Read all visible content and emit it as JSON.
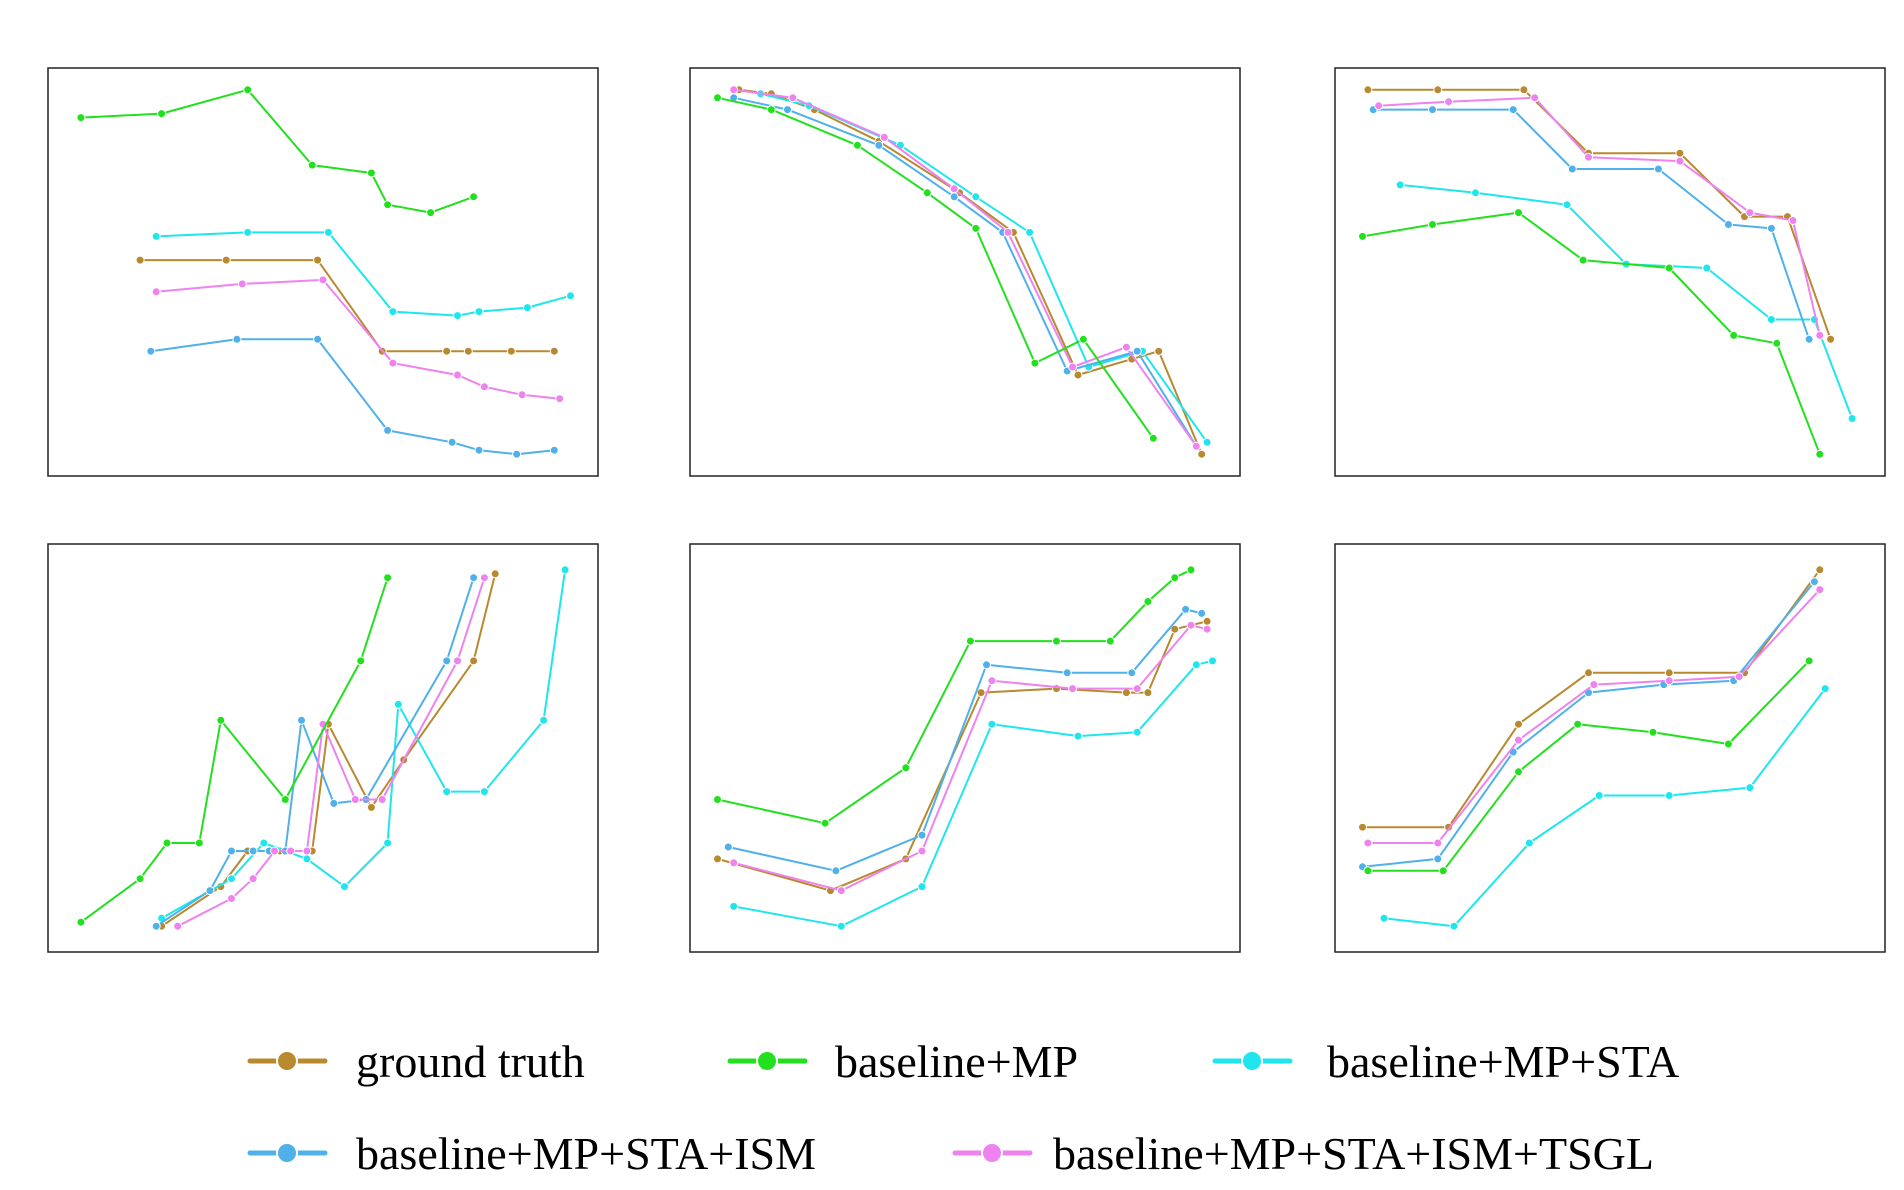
{
  "colors": {
    "ground truth": "#B8892E",
    "baseline+MP": "#22E01E",
    "baseline+MP+STA": "#1FE6EC",
    "baseline+MP+STA+ISM": "#4FB0EA",
    "baseline+MP+STA+ISM+TSGL": "#EE82EE"
  },
  "legend": {
    "items": [
      {
        "label": "ground truth",
        "color": "#B8892E"
      },
      {
        "label": "baseline+MP",
        "color": "#22E01E"
      },
      {
        "label": "baseline+MP+STA",
        "color": "#1FE6EC"
      },
      {
        "label": "baseline+MP+STA+ISM",
        "color": "#4FB0EA"
      },
      {
        "label": "baseline+MP+STA+ISM+TSGL",
        "color": "#EE82EE"
      }
    ]
  },
  "chart_data": [
    {
      "type": "line",
      "title": "",
      "xlabel": "",
      "ylabel": "",
      "grid": false,
      "xlim": [
        0,
        100
      ],
      "ylim": [
        0,
        100
      ],
      "series": [
        {
          "name": "ground truth",
          "x": [
            16,
            32,
            49,
            61,
            73,
            77,
            85,
            93
          ],
          "y": [
            53,
            53,
            53,
            30,
            30,
            30,
            30,
            30
          ]
        },
        {
          "name": "baseline+MP",
          "x": [
            5,
            20,
            36,
            48,
            59,
            62,
            70,
            78
          ],
          "y": [
            89,
            90,
            96,
            77,
            75,
            67,
            65,
            69
          ]
        },
        {
          "name": "baseline+MP+STA",
          "x": [
            19,
            36,
            51,
            63,
            75,
            79,
            88,
            96
          ],
          "y": [
            59,
            60,
            60,
            40,
            39,
            40,
            41,
            44
          ]
        },
        {
          "name": "baseline+MP+STA+ISM",
          "x": [
            18,
            34,
            49,
            62,
            74,
            79,
            86,
            93
          ],
          "y": [
            30,
            33,
            33,
            10,
            7,
            5,
            4,
            5
          ]
        },
        {
          "name": "baseline+MP+STA+ISM+TSGL",
          "x": [
            19,
            35,
            50,
            63,
            75,
            80,
            87,
            94
          ],
          "y": [
            45,
            47,
            48,
            27,
            24,
            21,
            19,
            18
          ]
        }
      ]
    },
    {
      "type": "line",
      "title": "",
      "xlabel": "",
      "ylabel": "",
      "grid": false,
      "xlim": [
        0,
        100
      ],
      "ylim": [
        0,
        100
      ],
      "series": [
        {
          "name": "ground truth",
          "x": [
            8,
            14,
            22,
            34,
            49,
            59,
            71,
            81,
            86,
            94
          ],
          "y": [
            96,
            95,
            91,
            83,
            70,
            60,
            24,
            28,
            30,
            4
          ]
        },
        {
          "name": "baseline+MP",
          "x": [
            4,
            14,
            30,
            43,
            52,
            63,
            72,
            85
          ],
          "y": [
            94,
            91,
            82,
            70,
            61,
            27,
            33,
            8
          ]
        },
        {
          "name": "baseline+MP+STA",
          "x": [
            12,
            21,
            38,
            52,
            62,
            73,
            83,
            95
          ],
          "y": [
            95,
            92,
            82,
            69,
            60,
            26,
            30,
            7
          ]
        },
        {
          "name": "baseline+MP+STA+ISM",
          "x": [
            7,
            17,
            34,
            48,
            57,
            69,
            82,
            93
          ],
          "y": [
            94,
            91,
            82,
            69,
            60,
            25,
            30,
            6
          ]
        },
        {
          "name": "baseline+MP+STA+ISM+TSGL",
          "x": [
            7,
            18,
            35,
            48,
            58,
            70,
            80,
            93
          ],
          "y": [
            96,
            94,
            84,
            71,
            60,
            26,
            31,
            6
          ]
        }
      ]
    },
    {
      "type": "line",
      "title": "",
      "xlabel": "",
      "ylabel": "",
      "grid": false,
      "xlim": [
        0,
        100
      ],
      "ylim": [
        0,
        100
      ],
      "series": [
        {
          "name": "ground truth",
          "x": [
            5,
            18,
            34,
            46,
            63,
            75,
            83,
            91
          ],
          "y": [
            96,
            96,
            96,
            80,
            80,
            64,
            64,
            33
          ]
        },
        {
          "name": "baseline+MP",
          "x": [
            4,
            17,
            33,
            45,
            61,
            73,
            81,
            89
          ],
          "y": [
            59,
            62,
            65,
            53,
            51,
            34,
            32,
            4
          ]
        },
        {
          "name": "baseline+MP+STA",
          "x": [
            11,
            25,
            42,
            53,
            68,
            80,
            88,
            95
          ],
          "y": [
            72,
            70,
            67,
            52,
            51,
            38,
            38,
            13
          ]
        },
        {
          "name": "baseline+MP+STA+ISM",
          "x": [
            6,
            17,
            32,
            43,
            59,
            72,
            80,
            87
          ],
          "y": [
            91,
            91,
            91,
            76,
            76,
            62,
            61,
            33
          ]
        },
        {
          "name": "baseline+MP+STA+ISM+TSGL",
          "x": [
            7,
            20,
            36,
            46,
            63,
            76,
            84,
            89
          ],
          "y": [
            92,
            93,
            94,
            79,
            78,
            65,
            63,
            34
          ]
        }
      ]
    },
    {
      "type": "line",
      "title": "",
      "xlabel": "",
      "ylabel": "",
      "grid": false,
      "xlim": [
        0,
        100
      ],
      "ylim": [
        0,
        100
      ],
      "series": [
        {
          "name": "ground truth",
          "x": [
            20,
            31,
            36,
            42,
            44,
            48,
            51,
            59,
            65,
            78,
            82
          ],
          "y": [
            5,
            15,
            24,
            24,
            24,
            24,
            56,
            35,
            47,
            72,
            94
          ]
        },
        {
          "name": "baseline+MP",
          "x": [
            5,
            16,
            21,
            27,
            31,
            43,
            57,
            62
          ],
          "y": [
            6,
            17,
            26,
            26,
            57,
            37,
            72,
            93
          ]
        },
        {
          "name": "baseline+MP+STA",
          "x": [
            20,
            33,
            39,
            47,
            54,
            62,
            64,
            73,
            80,
            91,
            95
          ],
          "y": [
            7,
            17,
            26,
            22,
            15,
            26,
            61,
            39,
            39,
            57,
            95
          ]
        },
        {
          "name": "baseline+MP+STA+ISM",
          "x": [
            19,
            29,
            33,
            37,
            40,
            43,
            46,
            52,
            58,
            73,
            78
          ],
          "y": [
            5,
            14,
            24,
            24,
            24,
            24,
            57,
            36,
            37,
            72,
            93
          ]
        },
        {
          "name": "baseline+MP+STA+ISM+TSGL",
          "x": [
            23,
            33,
            37,
            41,
            44,
            47,
            50,
            56,
            61,
            75,
            80
          ],
          "y": [
            5,
            12,
            17,
            24,
            24,
            24,
            56,
            37,
            37,
            72,
            93
          ]
        }
      ]
    },
    {
      "type": "line",
      "title": "",
      "xlabel": "",
      "ylabel": "",
      "grid": false,
      "xlim": [
        0,
        100
      ],
      "ylim": [
        0,
        100
      ],
      "series": [
        {
          "name": "ground truth",
          "x": [
            4,
            25,
            39,
            53,
            67,
            80,
            84,
            89,
            95
          ],
          "y": [
            22,
            14,
            22,
            64,
            65,
            64,
            64,
            80,
            82
          ]
        },
        {
          "name": "baseline+MP",
          "x": [
            4,
            24,
            39,
            51,
            67,
            77,
            84,
            89,
            92
          ],
          "y": [
            37,
            31,
            45,
            77,
            77,
            77,
            87,
            93,
            95
          ]
        },
        {
          "name": "baseline+MP+STA",
          "x": [
            7,
            27,
            42,
            55,
            71,
            82,
            93,
            96
          ],
          "y": [
            10,
            5,
            15,
            56,
            53,
            54,
            71,
            72
          ]
        },
        {
          "name": "baseline+MP+STA+ISM",
          "x": [
            6,
            26,
            42,
            54,
            69,
            81,
            91,
            94
          ],
          "y": [
            25,
            19,
            28,
            71,
            69,
            69,
            85,
            84
          ]
        },
        {
          "name": "baseline+MP+STA+ISM+TSGL",
          "x": [
            7,
            27,
            42,
            55,
            70,
            82,
            92,
            95
          ],
          "y": [
            21,
            14,
            24,
            67,
            65,
            65,
            81,
            80
          ]
        }
      ]
    },
    {
      "type": "line",
      "title": "",
      "xlabel": "",
      "ylabel": "",
      "grid": false,
      "xlim": [
        0,
        100
      ],
      "ylim": [
        0,
        100
      ],
      "series": [
        {
          "name": "ground truth",
          "x": [
            4,
            20,
            33,
            46,
            61,
            75,
            89
          ],
          "y": [
            30,
            30,
            56,
            69,
            69,
            69,
            95
          ]
        },
        {
          "name": "baseline+MP",
          "x": [
            5,
            19,
            33,
            44,
            58,
            72,
            87
          ],
          "y": [
            19,
            19,
            44,
            56,
            54,
            51,
            72
          ]
        },
        {
          "name": "baseline+MP+STA",
          "x": [
            8,
            21,
            35,
            48,
            61,
            76,
            90
          ],
          "y": [
            7,
            5,
            26,
            38,
            38,
            40,
            65
          ]
        },
        {
          "name": "baseline+MP+STA+ISM",
          "x": [
            4,
            18,
            32,
            46,
            60,
            73,
            88
          ],
          "y": [
            20,
            22,
            49,
            64,
            66,
            67,
            92
          ]
        },
        {
          "name": "baseline+MP+STA+ISM+TSGL",
          "x": [
            5,
            18,
            33,
            47,
            61,
            74,
            89
          ],
          "y": [
            26,
            26,
            52,
            66,
            67,
            68,
            90
          ]
        }
      ]
    }
  ]
}
